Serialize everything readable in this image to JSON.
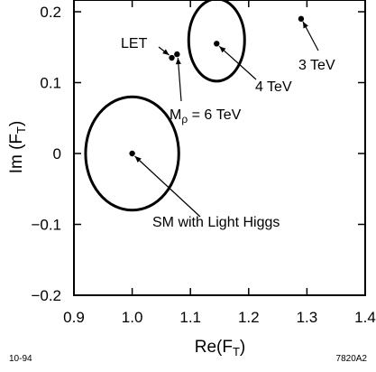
{
  "chart_data": {
    "type": "scatter",
    "xlabel": "Re(F",
    "xlabel_sub": "T",
    "xlabel_close": ")",
    "ylabel": "Im (F",
    "ylabel_sub": "T",
    "ylabel_close": ")",
    "xlim": [
      0.9,
      1.4
    ],
    "ylim": [
      -0.2,
      0.22
    ],
    "xticks": [
      0.9,
      1.0,
      1.1,
      1.2,
      1.3,
      1.4
    ],
    "xtick_labels": [
      "0.9",
      "1.0",
      "1.1",
      "1.2",
      "1.3",
      "1.4"
    ],
    "yticks": [
      -0.2,
      -0.1,
      0,
      0.1,
      0.2
    ],
    "ytick_labels": [
      "−0.2",
      "−0.1",
      "0",
      "0.1",
      "0.2"
    ],
    "grid": false,
    "points": [
      {
        "id": "sm",
        "x": 1.0,
        "y": 0.0,
        "label": "SM with Light Higgs"
      },
      {
        "id": "let",
        "x": 1.068,
        "y": 0.135,
        "label": "LET"
      },
      {
        "id": "mrho6",
        "x": 1.077,
        "y": 0.14,
        "label": "Mρ = 6 TeV"
      },
      {
        "id": "tev4",
        "x": 1.145,
        "y": 0.155,
        "label": "4 TeV"
      },
      {
        "id": "tev3",
        "x": 1.29,
        "y": 0.19,
        "label": "3 TeV"
      }
    ],
    "ellipses": [
      {
        "id": "sm-ellipse",
        "cx": 1.0,
        "cy": 0.0,
        "rx": 0.08,
        "ry": 0.08
      },
      {
        "id": "tev4-ellipse",
        "cx": 1.145,
        "cy": 0.16,
        "rx": 0.048,
        "ry": 0.058
      }
    ],
    "label_mrho_main": "M",
    "label_mrho_sub": "ρ",
    "label_mrho_rest": " = 6 TeV"
  },
  "footer": {
    "left": "10-94",
    "right": "7820A2"
  }
}
